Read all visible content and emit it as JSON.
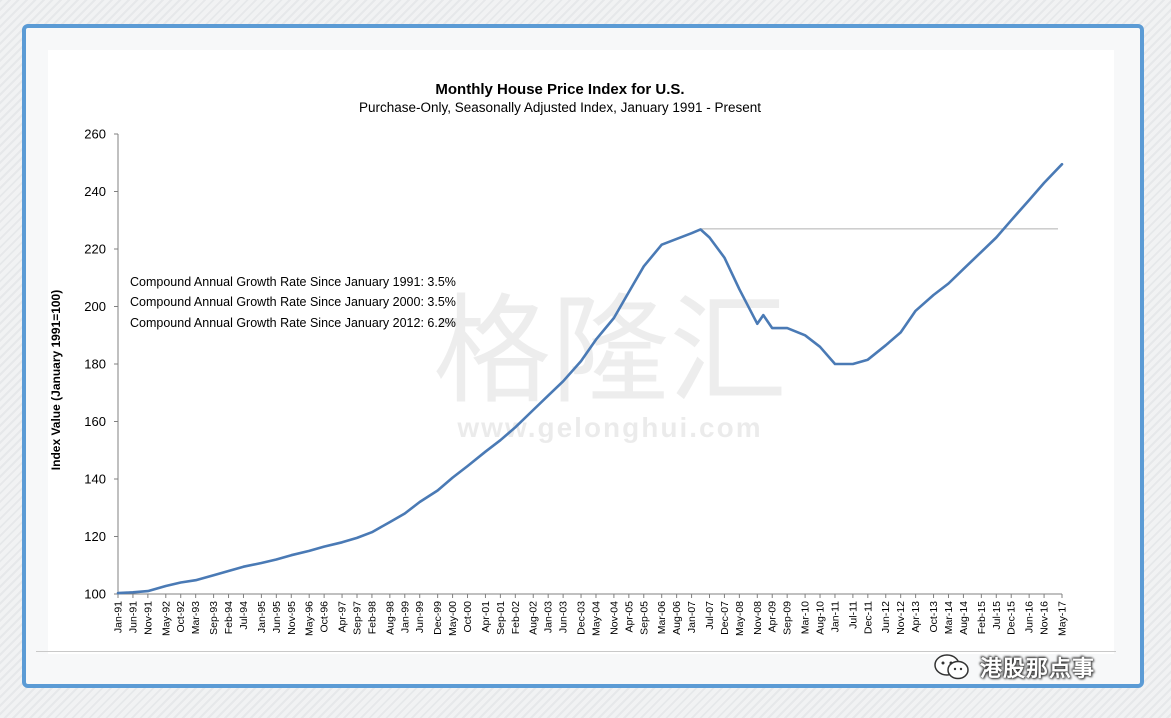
{
  "chart_data": {
    "type": "line",
    "title": "Monthly House Price Index for U.S.",
    "subtitle": "Purchase-Only, Seasonally Adjusted Index, January 1991 - Present",
    "ylabel": "Index Value (January 1991=100)",
    "xlabel": "",
    "ylim": [
      100,
      260
    ],
    "yticks": [
      100,
      120,
      140,
      160,
      180,
      200,
      220,
      240,
      260
    ],
    "x_tick_labels": [
      "Jan-91",
      "Jun-91",
      "Nov-91",
      "May-92",
      "Oct-92",
      "Mar-93",
      "Sep-93",
      "Feb-94",
      "Jul-94",
      "Jan-95",
      "Jun-95",
      "Nov-95",
      "May-96",
      "Oct-96",
      "Apr-97",
      "Sep-97",
      "Feb-98",
      "Aug-98",
      "Jan-99",
      "Jun-99",
      "Dec-99",
      "May-00",
      "Oct-00",
      "Apr-01",
      "Sep-01",
      "Feb-02",
      "Aug-02",
      "Jan-03",
      "Jun-03",
      "Dec-03",
      "May-04",
      "Nov-04",
      "Apr-05",
      "Sep-05",
      "Mar-06",
      "Aug-06",
      "Jan-07",
      "Jul-07",
      "Dec-07",
      "May-08",
      "Nov-08",
      "Apr-09",
      "Sep-09",
      "Mar-10",
      "Aug-10",
      "Jan-11",
      "Jul-11",
      "Dec-11",
      "Jun-12",
      "Nov-12",
      "Apr-13",
      "Oct-13",
      "Mar-14",
      "Aug-14",
      "Feb-15",
      "Jul-15",
      "Dec-15",
      "Jun-16",
      "Nov-16",
      "May-17"
    ],
    "reference_line": {
      "y": 227
    },
    "annotations": [
      "Compound Annual Growth Rate Since January 1991:  3.5%",
      "Compound Annual Growth Rate Since January 2000:  3.5%",
      "Compound Annual Growth Rate Since January 2012:  6.2%"
    ],
    "grid": false,
    "colors": {
      "line": "#4a7ab5",
      "axis": "#808080",
      "reference": "#b0b0b0"
    },
    "series": [
      {
        "x": [
          "Jan-91",
          "Jun-91",
          "Nov-91",
          "May-92",
          "Oct-92",
          "Mar-93",
          "Sep-93",
          "Feb-94",
          "Jul-94",
          "Jan-95",
          "Jun-95",
          "Nov-95",
          "May-96",
          "Oct-96",
          "Apr-97",
          "Sep-97",
          "Feb-98",
          "Aug-98",
          "Jan-99",
          "Jun-99",
          "Dec-99",
          "May-00",
          "Oct-00",
          "Apr-01",
          "Sep-01",
          "Feb-02",
          "Aug-02",
          "Jan-03",
          "Jun-03",
          "Dec-03",
          "May-04",
          "Nov-04",
          "Apr-05",
          "Sep-05",
          "Mar-06",
          "Aug-06",
          "Jan-07",
          "Apr-07",
          "Jul-07",
          "Dec-07",
          "May-08",
          "Nov-08",
          "Jan-09",
          "Apr-09",
          "Sep-09",
          "Mar-10",
          "Aug-10",
          "Jan-11",
          "Jul-11",
          "Dec-11",
          "Jun-12",
          "Nov-12",
          "Apr-13",
          "Oct-13",
          "Mar-14",
          "Aug-14",
          "Feb-15",
          "Jul-15",
          "Dec-15",
          "Jun-16",
          "Nov-16",
          "May-17"
        ],
        "values": [
          100.3,
          100.6,
          101.0,
          102.8,
          104.0,
          104.8,
          106.5,
          108.0,
          109.5,
          110.8,
          112.0,
          113.5,
          115.0,
          116.5,
          118.0,
          119.5,
          121.5,
          125.0,
          128.0,
          132.0,
          136.0,
          140.5,
          144.5,
          149.5,
          153.5,
          158.0,
          164.0,
          169.0,
          174.0,
          181.0,
          188.5,
          196.0,
          205.0,
          214.0,
          221.5,
          223.5,
          225.5,
          226.8,
          224.0,
          217.0,
          206.0,
          194.0,
          197.0,
          192.5,
          192.5,
          190.0,
          186.0,
          180.0,
          180.0,
          181.5,
          186.5,
          191.0,
          198.5,
          204.0,
          208.0,
          213.0,
          219.0,
          224.0,
          230.0,
          237.0,
          243.0,
          249.5
        ]
      }
    ]
  },
  "watermark": {
    "chinese": "格隆汇",
    "url": "www.gelonghui.com"
  },
  "footer": {
    "account_name": "港股那点事"
  }
}
